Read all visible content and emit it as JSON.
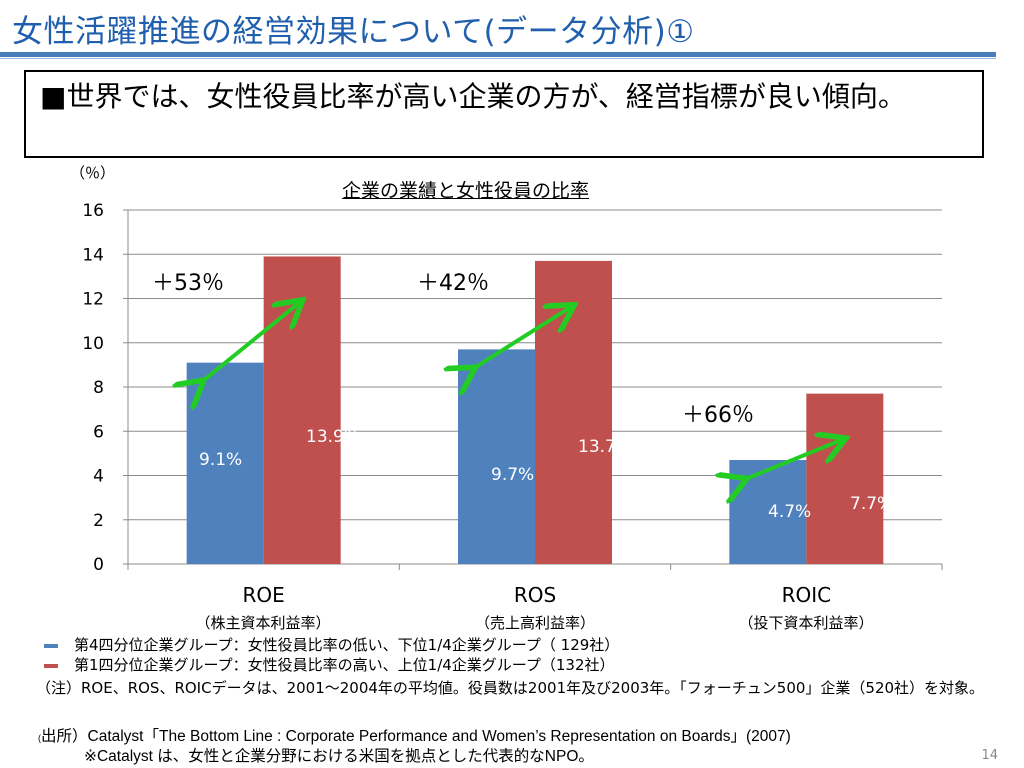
{
  "slide": {
    "title": "女性活躍推進の経営効果について(データ分析)①",
    "summary": "■世界では、女性役員比率が高い企業の方が、経営指標が良い傾向。",
    "page_number": "14"
  },
  "chart_data": {
    "type": "bar",
    "title": "企業の業績と女性役員の比率",
    "unit_label": "（％）",
    "categories": [
      "ROE",
      "ROS",
      "ROIC"
    ],
    "category_subtitles": [
      "（株主資本利益率）",
      "（売上高利益率）",
      "（投下資本利益率）"
    ],
    "series": [
      {
        "name": "第4四分位企業グループ：女性役員比率の低い、下位1/4企業グループ（ 129社）",
        "color": "#4f81bd",
        "values": [
          9.1,
          9.7,
          4.7
        ],
        "labels": [
          "9.1%",
          "9.7%",
          "4.7%"
        ]
      },
      {
        "name": "第1四分位企業グループ：女性役員比率の高い、上位1/4企業グループ（132社）",
        "color": "#c0504d",
        "values": [
          13.9,
          13.7,
          7.7
        ],
        "labels": [
          "13.9%",
          "13.7%",
          "7.7%"
        ]
      }
    ],
    "ylim": [
      0,
      16
    ],
    "yticks": [
      "0",
      "2",
      "4",
      "6",
      "8",
      "10",
      "12",
      "14",
      "16"
    ],
    "grid": true,
    "annotations": [
      "＋53％",
      "＋42％",
      "＋66％"
    ],
    "arrow_color": "#22cc22"
  },
  "notes": {
    "note": "（注）ROE、ROS、ROICデータは、2001～2004年の平均値。役員数は2001年及び2003年。「フォーチュン500」企業（520社）を対象。",
    "source_paren": "(",
    "source": "出所）Catalyst「The Bottom Line : Corporate  Performance and  Women’s  Representation on Boards」(2007)",
    "source_detail": "※Catalyst は、女性と企業分野における米国を拠点とした代表的なNPO。"
  }
}
